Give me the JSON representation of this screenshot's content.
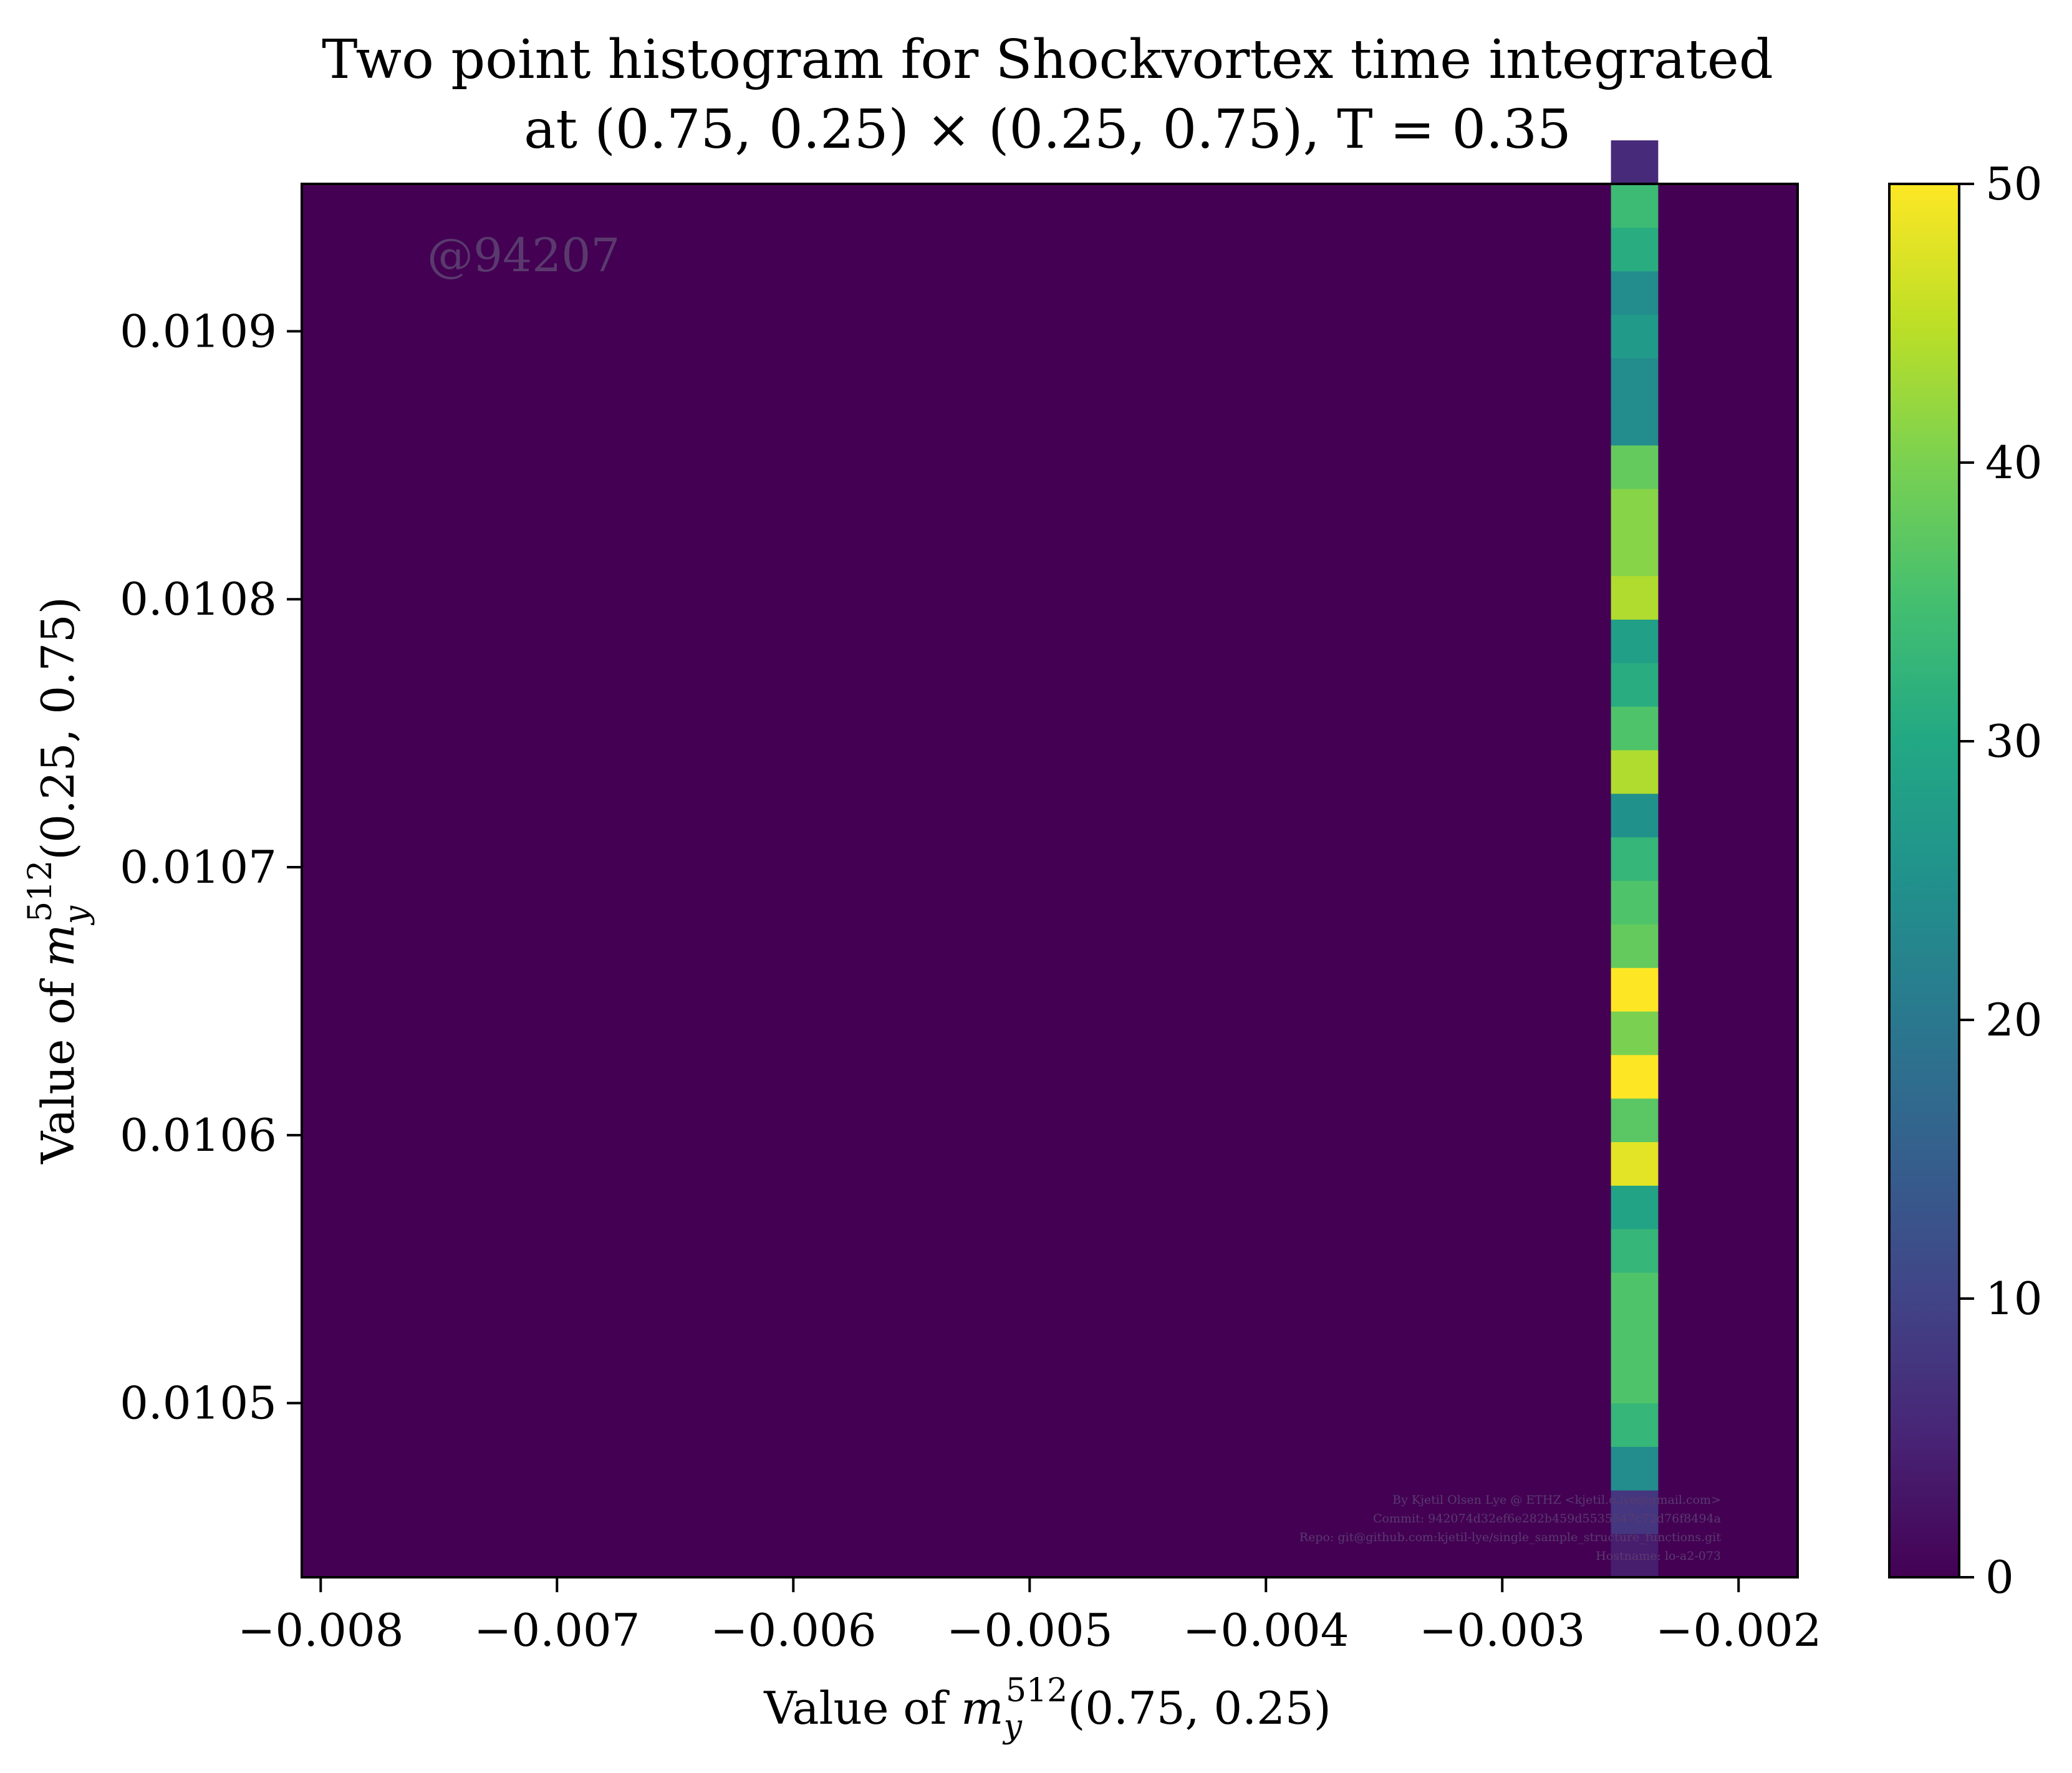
{
  "chart_data": {
    "type": "heatmap",
    "title_line1": "Two point histogram for Shockvortex time integrated",
    "title_line2": "at (0.75, 0.25) × (0.25, 0.75), T = 0.35",
    "xlabel": "Value of m_y^512(0.75, 0.25)",
    "ylabel": "Value of m_y^512(0.25, 0.75)",
    "xlim": [
      -0.00808,
      -0.00175
    ],
    "ylim": [
      0.010435,
      0.010955
    ],
    "xticks": [
      -0.008,
      -0.007,
      -0.006,
      -0.005,
      -0.004,
      -0.003,
      -0.002
    ],
    "xtick_labels": [
      "−0.008",
      "−0.007",
      "−0.006",
      "−0.005",
      "−0.004",
      "−0.003",
      "−0.002"
    ],
    "yticks": [
      0.0105,
      0.0106,
      0.0107,
      0.0108,
      0.0109
    ],
    "ytick_labels": [
      "0.0105",
      "0.0106",
      "0.0107",
      "0.0108",
      "0.0109"
    ],
    "colorbar": {
      "colormap": "viridis",
      "min": 0,
      "max": 50,
      "ticks": [
        0,
        10,
        20,
        30,
        40,
        50
      ],
      "tick_labels": [
        "0",
        "10",
        "20",
        "30",
        "40",
        "50"
      ]
    },
    "background_count": 0,
    "column_x_range": [
      -0.00254,
      -0.00234
    ],
    "bin_height": 1.625e-05,
    "column_counts_bottom_to_top": [
      4,
      8,
      24,
      33,
      36,
      36,
      36,
      33,
      29,
      48,
      37,
      50,
      40,
      50,
      38,
      36,
      33,
      25,
      44,
      36,
      31,
      28,
      44,
      41,
      41,
      38,
      24,
      24,
      27,
      24,
      31,
      34,
      6
    ]
  },
  "watermark": "@94207",
  "credits": [
    "By Kjetil Olsen Lye @ ETHZ <kjetil.o.lye@gmail.com>",
    "Commit: 942074d32ef6e282b459d5535547c72d76f8494a",
    "Repo: git@github.com:kjetil-lye/single_sample_structure_functions.git",
    "Hostname: lo-a2-073"
  ]
}
